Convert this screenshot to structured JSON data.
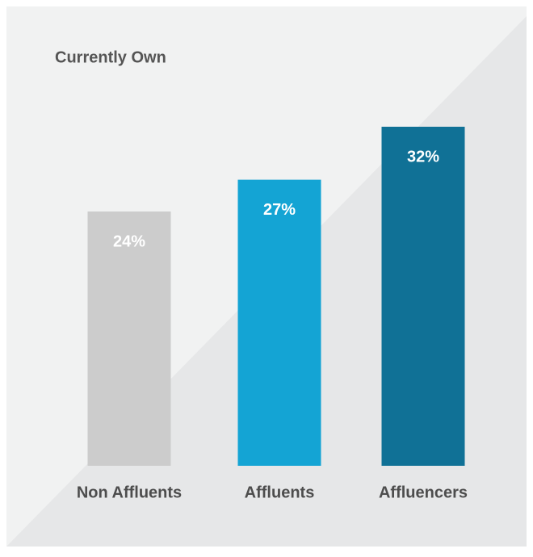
{
  "chart_data": {
    "type": "bar",
    "title": "Currently Own",
    "categories": [
      "Non Affluents",
      "Affluents",
      "Affluencers"
    ],
    "values": [
      24,
      27,
      32
    ],
    "value_labels": [
      "24%",
      "27%",
      "32%"
    ],
    "colors": [
      "#cccccc",
      "#14a4d4",
      "#107196"
    ]
  }
}
